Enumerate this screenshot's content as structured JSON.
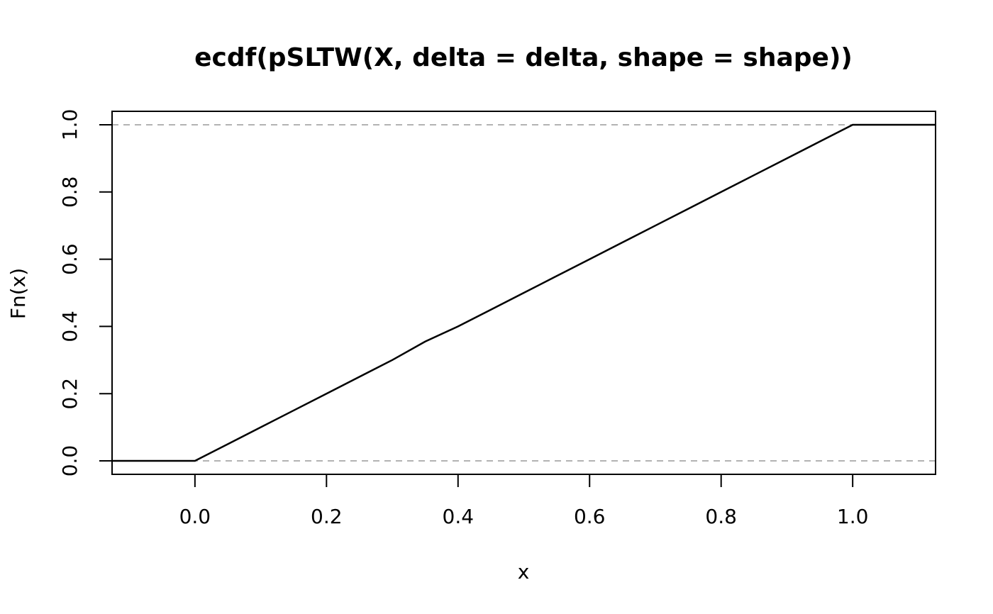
{
  "chart_data": {
    "type": "line",
    "title": "ecdf(pSLTW(X, delta = delta, shape = shape))",
    "xlabel": "x",
    "ylabel": "Fn(x)",
    "xlim": [
      -0.126,
      1.126
    ],
    "ylim": [
      -0.04,
      1.04
    ],
    "x_ticks": [
      0.0,
      0.2,
      0.4,
      0.6,
      0.8,
      1.0
    ],
    "x_tick_labels": [
      "0.0",
      "0.2",
      "0.4",
      "0.6",
      "0.8",
      "1.0"
    ],
    "y_ticks": [
      0.0,
      0.2,
      0.4,
      0.6,
      0.8,
      1.0
    ],
    "y_tick_labels": [
      "0.0",
      "0.2",
      "0.4",
      "0.6",
      "0.8",
      "1.0"
    ],
    "reference_lines": [
      0,
      1
    ],
    "reference_line_color": "#b3b3b3",
    "line_color": "#000000",
    "grid": false,
    "legend": "none",
    "series": [
      {
        "x": [
          -0.126,
          0.0,
          0.05,
          0.1,
          0.15,
          0.2,
          0.25,
          0.3,
          0.35,
          0.4,
          0.45,
          0.5,
          0.55,
          0.6,
          0.65,
          0.7,
          0.75,
          0.8,
          0.85,
          0.9,
          0.95,
          1.0,
          1.126
        ],
        "y": [
          0.0,
          0.0,
          0.05,
          0.1,
          0.15,
          0.2,
          0.25,
          0.3,
          0.355,
          0.4,
          0.45,
          0.5,
          0.55,
          0.6,
          0.65,
          0.7,
          0.75,
          0.8,
          0.85,
          0.9,
          0.95,
          1.0,
          1.0
        ]
      }
    ]
  }
}
